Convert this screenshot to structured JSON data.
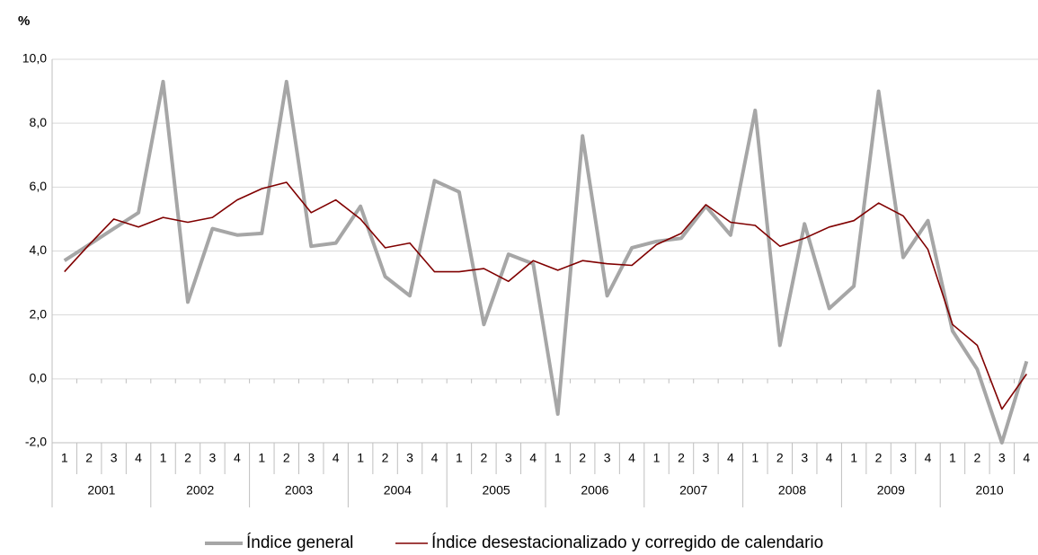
{
  "chart_data": {
    "type": "line",
    "y_label": "%",
    "categories": [
      "1",
      "2",
      "3",
      "4",
      "1",
      "2",
      "3",
      "4",
      "1",
      "2",
      "3",
      "4",
      "1",
      "2",
      "3",
      "4",
      "1",
      "2",
      "3",
      "4",
      "1",
      "2",
      "3",
      "4",
      "1",
      "2",
      "3",
      "4",
      "1",
      "2",
      "3",
      "4",
      "1",
      "2",
      "3",
      "4",
      "1",
      "2",
      "3",
      "4"
    ],
    "groups": [
      "2001",
      "2002",
      "2003",
      "2004",
      "2005",
      "2006",
      "2007",
      "2008",
      "2009",
      "2010"
    ],
    "series": [
      {
        "name": "Índice general",
        "color": "#a6a6a6",
        "values": [
          3.7,
          4.2,
          4.7,
          5.2,
          9.3,
          2.4,
          4.7,
          4.5,
          4.55,
          9.3,
          4.15,
          4.25,
          5.4,
          3.2,
          2.6,
          6.2,
          5.85,
          1.7,
          3.9,
          3.6,
          -1.1,
          7.6,
          2.6,
          4.1,
          4.3,
          4.4,
          5.4,
          4.5,
          8.4,
          1.05,
          4.85,
          2.2,
          2.9,
          9.0,
          3.8,
          4.95,
          1.5,
          0.3,
          -2.0,
          0.55
        ]
      },
      {
        "name": "Índice desestacionalizado y corregido de calendario",
        "color": "#800000",
        "values": [
          3.35,
          4.2,
          5.0,
          4.75,
          5.05,
          4.9,
          5.05,
          5.6,
          5.95,
          6.15,
          5.2,
          5.6,
          5.0,
          4.1,
          4.25,
          3.35,
          3.35,
          3.45,
          3.05,
          3.7,
          3.4,
          3.7,
          3.6,
          3.55,
          4.2,
          4.55,
          5.45,
          4.9,
          4.8,
          4.15,
          4.4,
          4.75,
          4.95,
          5.5,
          5.1,
          4.05,
          1.7,
          1.05,
          -0.95,
          0.15
        ]
      }
    ],
    "ylim": [
      -2,
      10
    ],
    "yticks": [
      {
        "value": -2,
        "label": "-2,0"
      },
      {
        "value": 0,
        "label": "0,0"
      },
      {
        "value": 2,
        "label": "2,0"
      },
      {
        "value": 4,
        "label": "4,0"
      },
      {
        "value": 6,
        "label": "6,0"
      },
      {
        "value": 8,
        "label": "8,0"
      },
      {
        "value": 10,
        "label": "10,0"
      }
    ],
    "grid": true
  }
}
